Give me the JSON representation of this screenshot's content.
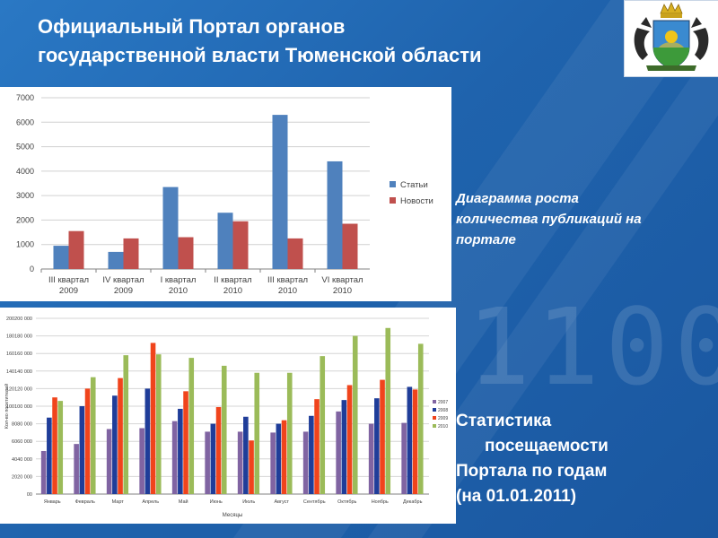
{
  "header": {
    "title_line1": "Официальный Портал органов",
    "title_line2": "государственной власти Тюменской области"
  },
  "colors": {
    "statyi": "#4f81bd",
    "novosti": "#c0504d",
    "c2007": "#8064a2",
    "c2008": "#1f3d99",
    "c2009": "#f0441c",
    "c2010": "#9bbb59"
  },
  "background_digits": "1100",
  "caption1": {
    "line1": "Диаграмма роста",
    "line2": "количества публикаций на",
    "line3": "портале"
  },
  "caption2": {
    "line1": "Статистика",
    "line2": "посещаемости",
    "line3": "Портала по годам",
    "line4": "(на 01.01.2011)"
  },
  "chart_data": [
    {
      "type": "bar",
      "categories": [
        [
          "III квартал",
          "2009"
        ],
        [
          "IV квартал",
          "2009"
        ],
        [
          "I квартал",
          "2010"
        ],
        [
          "II квартал",
          "2010"
        ],
        [
          "III квартал",
          "2010"
        ],
        [
          "VI квартал",
          "2010"
        ]
      ],
      "series": [
        {
          "name": "Статьи",
          "values": [
            950,
            700,
            3350,
            2300,
            6300,
            4400
          ]
        },
        {
          "name": "Новости",
          "values": [
            1550,
            1250,
            1300,
            1950,
            1250,
            1850
          ]
        }
      ],
      "ylim": [
        0,
        7000
      ],
      "yticks": [
        0,
        1000,
        2000,
        3000,
        4000,
        5000,
        6000,
        7000
      ],
      "legend": "right",
      "grid": true
    },
    {
      "type": "bar",
      "categories": [
        "Январь",
        "Февраль",
        "Март",
        "Апрель",
        "Май",
        "Июнь",
        "Июль",
        "Август",
        "Сентябрь",
        "Октябрь",
        "Ноябрь",
        "Декабрь"
      ],
      "series": [
        {
          "name": "2007",
          "values": [
            49,
            57,
            74,
            75,
            83,
            71,
            71,
            70,
            71,
            94,
            80,
            81
          ]
        },
        {
          "name": "2008",
          "values": [
            87,
            100,
            112,
            120,
            97,
            80,
            88,
            80,
            89,
            107,
            109,
            122
          ]
        },
        {
          "name": "2009",
          "values": [
            110,
            120,
            132,
            172,
            117,
            99,
            61,
            84,
            108,
            124,
            130,
            119
          ]
        },
        {
          "name": "2010",
          "values": [
            106,
            133,
            158,
            159,
            155,
            146,
            138,
            138,
            157,
            180,
            189,
            171
          ]
        }
      ],
      "ylim": [
        0,
        200
      ],
      "yticks": [
        0,
        20,
        40,
        60,
        80,
        100,
        120,
        140,
        160,
        180,
        200
      ],
      "xlabel": "Месяцы",
      "ylabel": "Кол-во посетителей",
      "legend": "right",
      "grid": true
    }
  ]
}
